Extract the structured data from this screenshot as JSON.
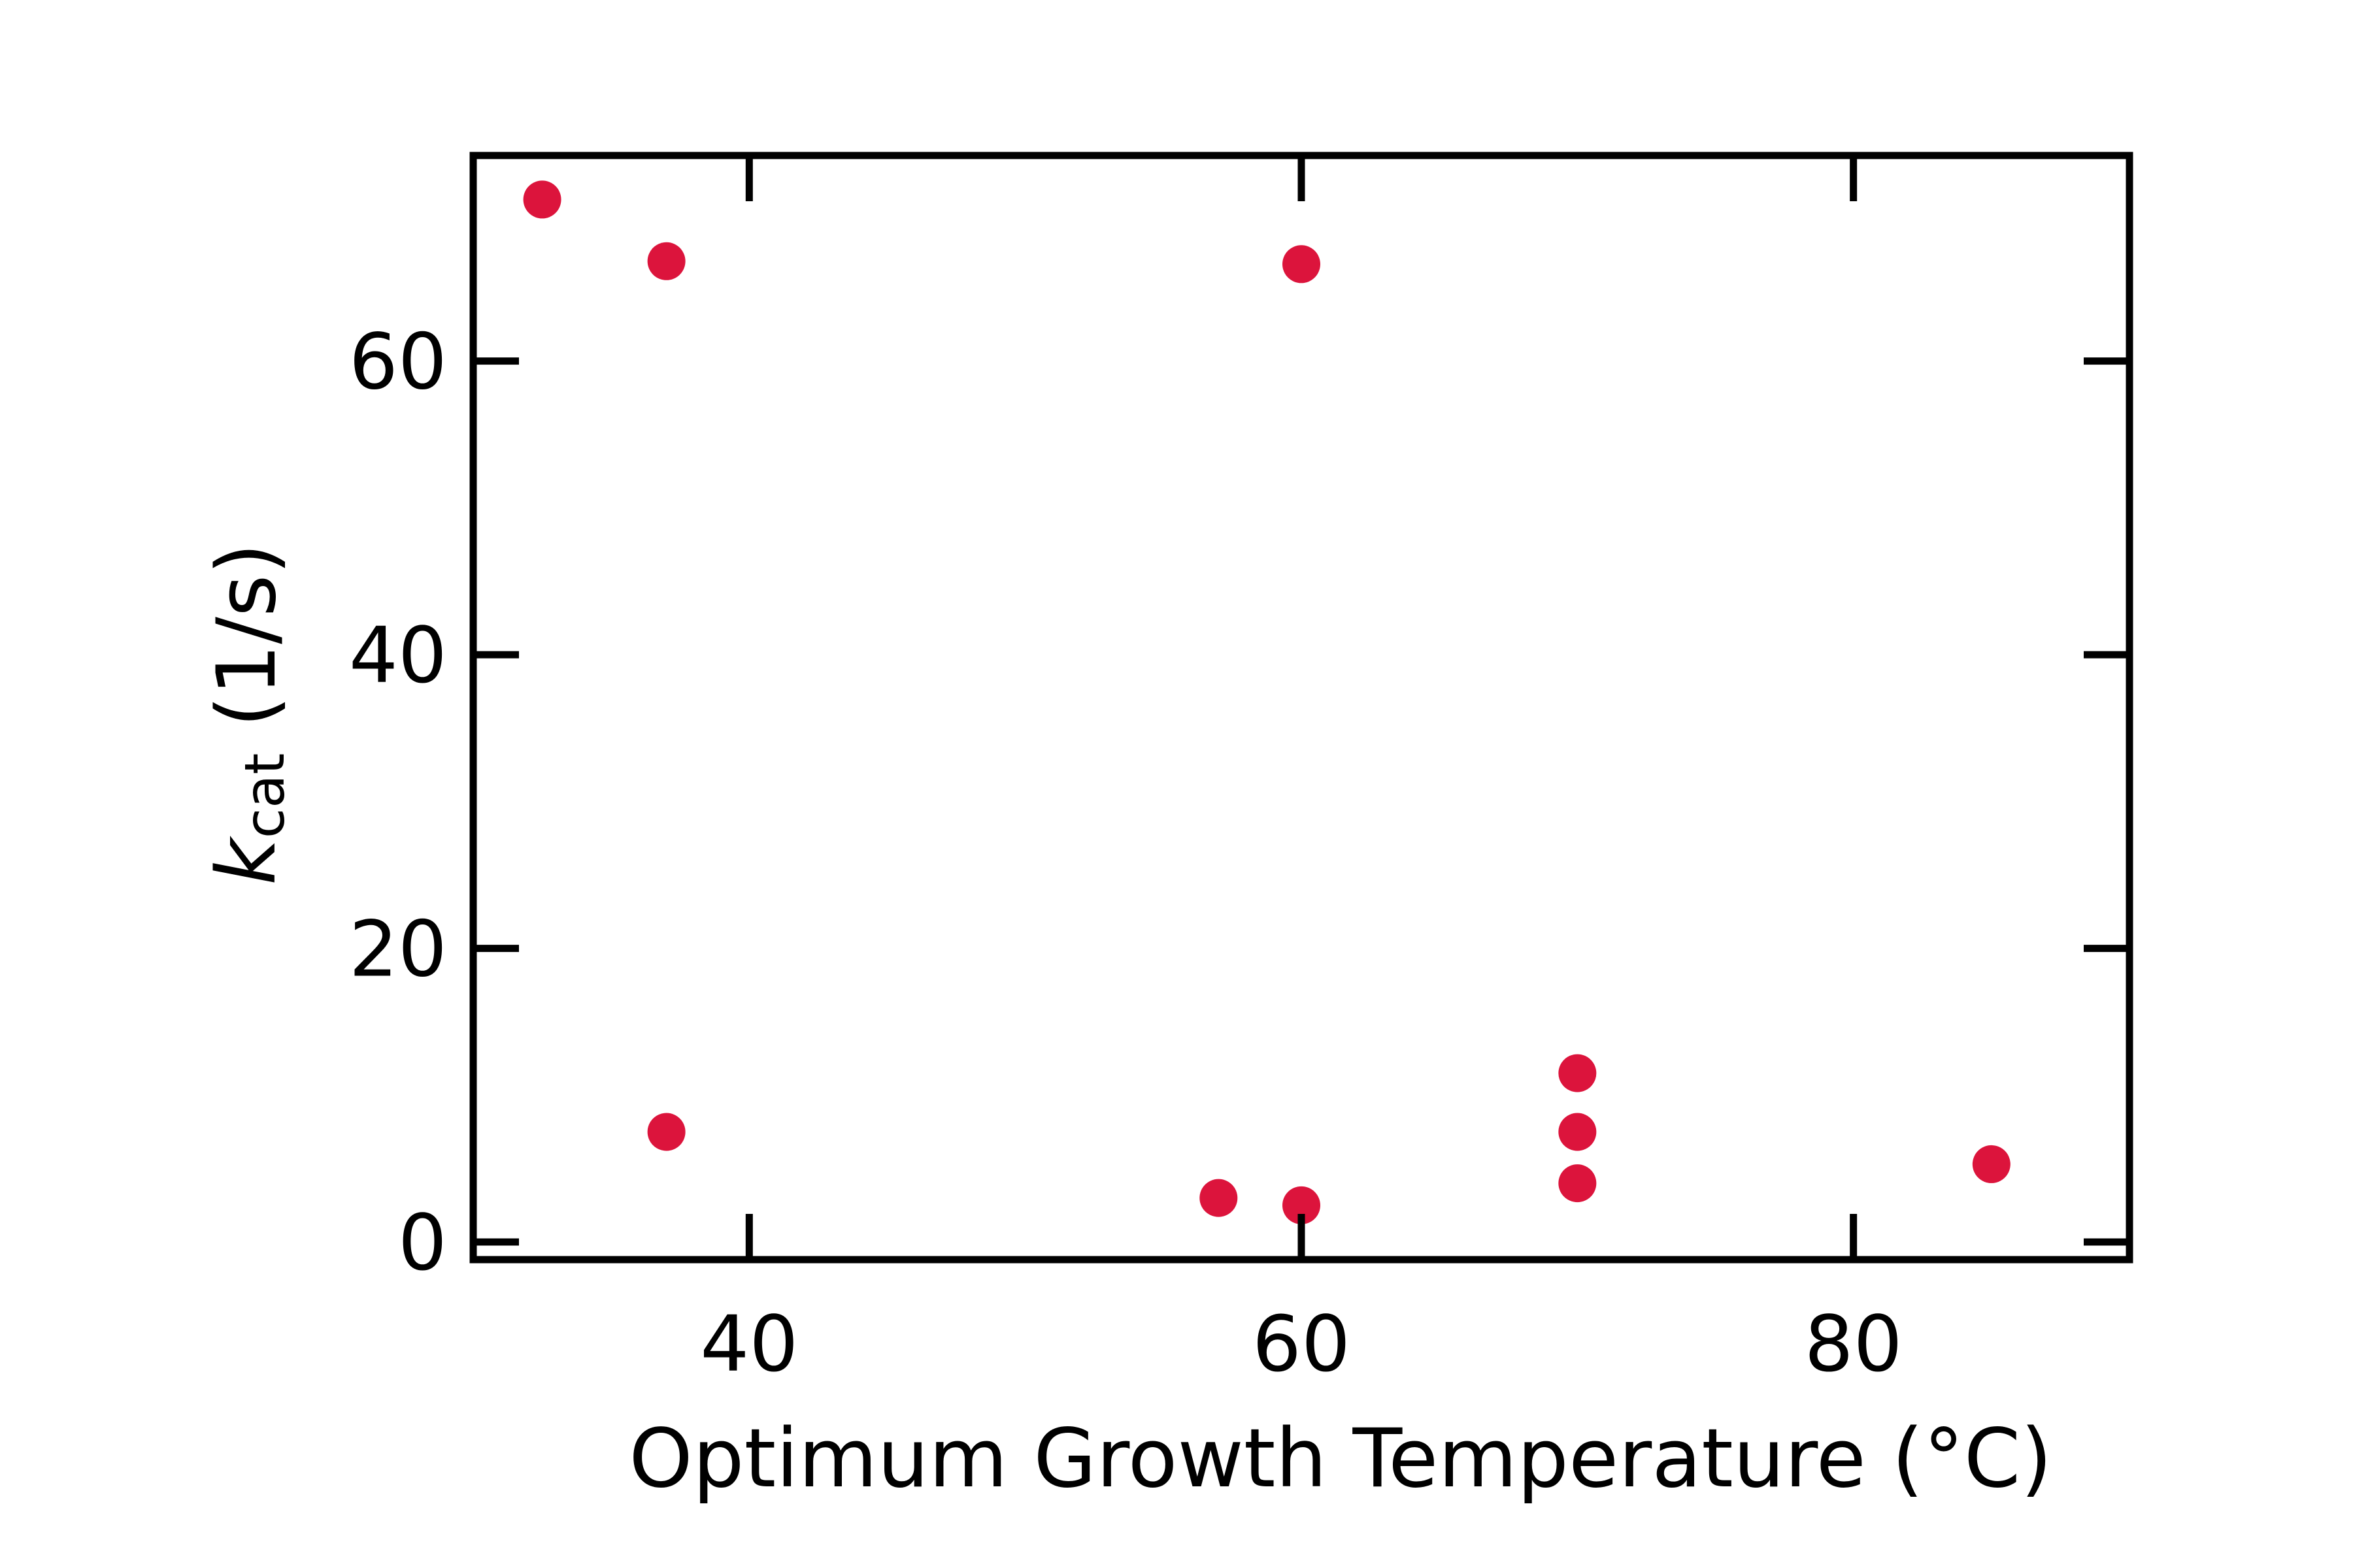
{
  "chart_data": {
    "type": "scatter",
    "title": "",
    "xlabel": "Optimum Growth Temperature (°C)",
    "ylabel": {
      "symbol": "k",
      "subscript": "cat",
      "unit": " (1/s)"
    },
    "xlim": [
      30,
      90
    ],
    "ylim": [
      -1.2,
      74
    ],
    "x_ticks": [
      40,
      60,
      80
    ],
    "y_ticks": [
      0,
      20,
      40,
      60
    ],
    "grid": false,
    "legend": "none",
    "marker_color": "#dc143c",
    "series": [
      {
        "points": [
          {
            "x": 32.5,
            "y": 71.0
          },
          {
            "x": 37.0,
            "y": 66.8
          },
          {
            "x": 37.0,
            "y": 7.5
          },
          {
            "x": 57.0,
            "y": 3.0
          },
          {
            "x": 60.0,
            "y": 66.6
          },
          {
            "x": 60.0,
            "y": 2.5
          },
          {
            "x": 70.0,
            "y": 11.5
          },
          {
            "x": 70.0,
            "y": 7.5
          },
          {
            "x": 70.0,
            "y": 4.0
          },
          {
            "x": 85.0,
            "y": 5.3
          }
        ]
      }
    ]
  }
}
